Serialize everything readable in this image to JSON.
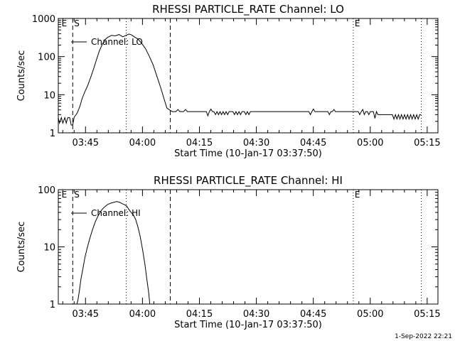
{
  "chart_data": [
    {
      "type": "line",
      "title": "RHESSI PARTICLE_RATE Channel: LO",
      "xlabel": "Start Time (10-Jan-17 03:37:50)",
      "ylabel": "Counts/sec",
      "x_unit": "minutes after 03:37:50",
      "xlim": [
        0,
        100
      ],
      "ylim": [
        1,
        1000
      ],
      "yscale": "log",
      "xticks": [
        {
          "value": 7.17,
          "label": "03:45"
        },
        {
          "value": 22.17,
          "label": "04:00"
        },
        {
          "value": 37.17,
          "label": "04:15"
        },
        {
          "value": 52.17,
          "label": "04:30"
        },
        {
          "value": 67.17,
          "label": "04:45"
        },
        {
          "value": 82.17,
          "label": "05:00"
        },
        {
          "value": 97.17,
          "label": "05:15"
        }
      ],
      "yticks": [
        {
          "value": 1,
          "label": "1"
        },
        {
          "value": 10,
          "label": "10"
        },
        {
          "value": 100,
          "label": "100"
        },
        {
          "value": 1000,
          "label": "1000"
        }
      ],
      "legend": {
        "label": "Channel: LO",
        "position": "top-left"
      },
      "markers": [
        {
          "label": "E",
          "x": 0.5,
          "style": "none"
        },
        {
          "label": "S",
          "x": 3.8,
          "style": "dashed"
        },
        {
          "label": "",
          "x": 17.9,
          "style": "dotted"
        },
        {
          "label": "",
          "x": 29.5,
          "style": "dashed"
        },
        {
          "label": "E",
          "x": 77.7,
          "style": "dotted"
        },
        {
          "label": "",
          "x": 95.6,
          "style": "dotted"
        }
      ],
      "series": [
        {
          "values": [
            [
              0,
              2.5
            ],
            [
              0.3,
              1.8
            ],
            [
              0.8,
              2.5
            ],
            [
              1.2,
              1.8
            ],
            [
              1.7,
              2.5
            ],
            [
              2.1,
              1.8
            ],
            [
              2.5,
              2.5
            ],
            [
              3.0,
              2.5
            ],
            [
              3.4,
              1.6
            ],
            [
              3.8,
              1.6
            ],
            [
              4.2,
              2.6
            ],
            [
              4.7,
              3.0
            ],
            [
              5.1,
              3.5
            ],
            [
              5.7,
              5.0
            ],
            [
              6.3,
              8.0
            ],
            [
              7.0,
              12
            ],
            [
              7.7,
              17
            ],
            [
              8.5,
              28
            ],
            [
              9.3,
              48
            ],
            [
              10.0,
              80
            ],
            [
              10.8,
              140
            ],
            [
              11.6,
              210
            ],
            [
              12.3,
              280
            ],
            [
              13.0,
              320
            ],
            [
              14.0,
              360
            ],
            [
              15.0,
              350
            ],
            [
              16.0,
              380
            ],
            [
              17.0,
              330
            ],
            [
              17.8,
              360
            ],
            [
              18.6,
              390
            ],
            [
              19.3,
              370
            ],
            [
              20.0,
              330
            ],
            [
              21.0,
              290
            ],
            [
              22.0,
              220
            ],
            [
              23.0,
              160
            ],
            [
              24.0,
              100
            ],
            [
              25.0,
              60
            ],
            [
              26.0,
              30
            ],
            [
              27.0,
              15
            ],
            [
              28.0,
              7
            ],
            [
              28.6,
              4.5
            ],
            [
              29.3,
              4.0
            ],
            [
              30.0,
              3.6
            ],
            [
              31.0,
              3.6
            ],
            [
              31.5,
              4.1
            ],
            [
              32.0,
              3.6
            ],
            [
              33.0,
              3.6
            ],
            [
              33.5,
              4.1
            ],
            [
              34.0,
              3.6
            ],
            [
              35.0,
              3.6
            ],
            [
              36.0,
              3.6
            ],
            [
              37.0,
              3.6
            ],
            [
              38.0,
              3.6
            ],
            [
              39.0,
              3.6
            ],
            [
              39.4,
              2.8
            ],
            [
              39.8,
              3.6
            ],
            [
              40.2,
              4.2
            ],
            [
              40.6,
              3.6
            ],
            [
              41.0,
              3.6
            ],
            [
              41.4,
              3.0
            ],
            [
              41.8,
              3.6
            ],
            [
              42.2,
              3.0
            ],
            [
              42.6,
              3.6
            ],
            [
              43.0,
              3.0
            ],
            [
              43.4,
              3.6
            ],
            [
              43.8,
              3.0
            ],
            [
              44.2,
              3.6
            ],
            [
              44.6,
              3.0
            ],
            [
              45.0,
              3.6
            ],
            [
              46.0,
              3.6
            ],
            [
              46.4,
              3.0
            ],
            [
              46.8,
              3.6
            ],
            [
              47.2,
              3.0
            ],
            [
              47.6,
              3.6
            ],
            [
              48.0,
              3.0
            ],
            [
              48.4,
              3.6
            ],
            [
              49.0,
              3.6
            ],
            [
              49.4,
              3.0
            ],
            [
              49.8,
              3.6
            ],
            [
              50.2,
              3.0
            ],
            [
              50.6,
              3.6
            ],
            [
              51.0,
              3.6
            ],
            [
              52.0,
              3.6
            ],
            [
              53.0,
              3.6
            ],
            [
              54.0,
              3.6
            ],
            [
              55.0,
              3.6
            ],
            [
              56.0,
              3.6
            ],
            [
              57.0,
              3.6
            ],
            [
              58.0,
              3.6
            ],
            [
              59.0,
              3.6
            ],
            [
              60.0,
              3.6
            ],
            [
              61.0,
              3.6
            ],
            [
              62.0,
              3.6
            ],
            [
              63.0,
              3.6
            ],
            [
              64.0,
              3.6
            ],
            [
              65.0,
              3.6
            ],
            [
              66.0,
              3.6
            ],
            [
              66.4,
              3.0
            ],
            [
              66.8,
              3.6
            ],
            [
              67.2,
              4.2
            ],
            [
              67.6,
              3.6
            ],
            [
              68.0,
              3.6
            ],
            [
              69.0,
              3.6
            ],
            [
              70.0,
              3.6
            ],
            [
              71.0,
              3.6
            ],
            [
              71.4,
              3.0
            ],
            [
              71.8,
              3.6
            ],
            [
              72.2,
              3.6
            ],
            [
              72.6,
              4.1
            ],
            [
              73.0,
              3.6
            ],
            [
              74.0,
              3.6
            ],
            [
              75.0,
              3.6
            ],
            [
              76.0,
              3.6
            ],
            [
              77.0,
              3.6
            ],
            [
              78.0,
              3.6
            ],
            [
              79.0,
              3.6
            ],
            [
              79.4,
              3.0
            ],
            [
              79.8,
              3.6
            ],
            [
              80.2,
              4.1
            ],
            [
              80.6,
              3.0
            ],
            [
              81.0,
              3.6
            ],
            [
              81.4,
              3.6
            ],
            [
              81.8,
              3.0
            ],
            [
              82.2,
              3.6
            ],
            [
              83.0,
              3.6
            ],
            [
              83.4,
              2.4
            ],
            [
              83.8,
              3.6
            ],
            [
              84.2,
              3.0
            ],
            [
              85.0,
              3.0
            ],
            [
              86.0,
              3.0
            ],
            [
              87.0,
              3.0
            ],
            [
              88.0,
              3.0
            ],
            [
              88.4,
              2.3
            ],
            [
              88.8,
              3.0
            ],
            [
              89.2,
              2.3
            ],
            [
              89.6,
              3.0
            ],
            [
              90.0,
              2.3
            ],
            [
              90.4,
              3.0
            ],
            [
              90.8,
              2.3
            ],
            [
              91.2,
              3.0
            ],
            [
              91.6,
              2.3
            ],
            [
              92.0,
              3.0
            ],
            [
              92.4,
              2.3
            ],
            [
              92.8,
              3.0
            ],
            [
              93.2,
              2.3
            ],
            [
              93.6,
              3.0
            ],
            [
              94.0,
              2.3
            ],
            [
              94.4,
              3.0
            ],
            [
              94.8,
              2.3
            ],
            [
              95.2,
              3.0
            ],
            [
              95.6,
              3.0
            ]
          ]
        }
      ]
    },
    {
      "type": "line",
      "title": "RHESSI PARTICLE_RATE Channel: HI",
      "xlabel": "Start Time (10-Jan-17 03:37:50)",
      "ylabel": "Counts/sec",
      "x_unit": "minutes after 03:37:50",
      "xlim": [
        0,
        100
      ],
      "ylim": [
        1,
        100
      ],
      "yscale": "log",
      "xticks": [
        {
          "value": 7.17,
          "label": "03:45"
        },
        {
          "value": 22.17,
          "label": "04:00"
        },
        {
          "value": 37.17,
          "label": "04:15"
        },
        {
          "value": 52.17,
          "label": "04:30"
        },
        {
          "value": 67.17,
          "label": "04:45"
        },
        {
          "value": 82.17,
          "label": "05:00"
        },
        {
          "value": 97.17,
          "label": "05:15"
        }
      ],
      "yticks": [
        {
          "value": 1,
          "label": "1"
        },
        {
          "value": 10,
          "label": "10"
        },
        {
          "value": 100,
          "label": "100"
        }
      ],
      "legend": {
        "label": "Channel: HI",
        "position": "top-left"
      },
      "markers": [
        {
          "label": "E",
          "x": 0.5,
          "style": "none"
        },
        {
          "label": "S",
          "x": 3.8,
          "style": "dashed"
        },
        {
          "label": "",
          "x": 17.9,
          "style": "dotted"
        },
        {
          "label": "",
          "x": 29.5,
          "style": "dashed"
        },
        {
          "label": "E",
          "x": 77.7,
          "style": "dotted"
        },
        {
          "label": "",
          "x": 95.6,
          "style": "dotted"
        }
      ],
      "series": [
        {
          "values": [
            [
              4.9,
              1.0
            ],
            [
              5.2,
              1.2
            ],
            [
              5.6,
              1.8
            ],
            [
              6.0,
              2.8
            ],
            [
              6.5,
              4.2
            ],
            [
              7.0,
              6.5
            ],
            [
              7.6,
              9.5
            ],
            [
              8.3,
              14
            ],
            [
              9.0,
              20
            ],
            [
              9.8,
              28
            ],
            [
              10.6,
              36
            ],
            [
              11.4,
              44
            ],
            [
              12.2,
              50
            ],
            [
              13.0,
              55
            ],
            [
              13.8,
              58
            ],
            [
              14.6,
              60
            ],
            [
              15.4,
              62
            ],
            [
              16.2,
              60
            ],
            [
              16.8,
              57
            ],
            [
              17.4,
              55
            ],
            [
              18.0,
              52
            ],
            [
              18.6,
              45
            ],
            [
              19.2,
              40
            ],
            [
              19.8,
              36
            ],
            [
              20.4,
              30
            ],
            [
              21.0,
              22
            ],
            [
              21.6,
              15
            ],
            [
              22.2,
              9.0
            ],
            [
              22.8,
              5.0
            ],
            [
              23.3,
              2.8
            ],
            [
              23.8,
              1.6
            ],
            [
              24.1,
              1.0
            ]
          ]
        }
      ]
    }
  ],
  "footer": {
    "timestamp": "1-Sep-2022 22:21"
  }
}
